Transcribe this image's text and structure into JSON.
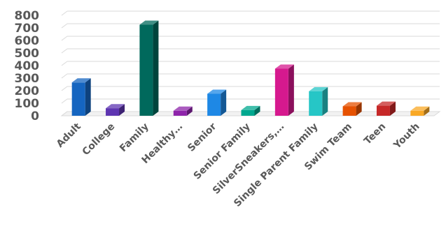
{
  "chart_data": {
    "type": "bar",
    "title": "",
    "xlabel": "",
    "ylabel": "",
    "categories": [
      "Adult",
      "College",
      "Family",
      "Healthy…",
      "Senior",
      "Senior Family",
      "SilverSneakers,…",
      "Single Parent Family",
      "Swim Team",
      "Teen",
      "Youth"
    ],
    "values": [
      265,
      60,
      725,
      40,
      175,
      45,
      375,
      195,
      75,
      80,
      40
    ],
    "colors": [
      "#1565C0",
      "#5E35B1",
      "#00695C",
      "#8E24AA",
      "#1E88E5",
      "#00A88F",
      "#D6198E",
      "#26C6C6",
      "#E65100",
      "#C62828",
      "#F9A825"
    ],
    "ylim": [
      0,
      800
    ],
    "yticks": [
      0,
      100,
      200,
      300,
      400,
      500,
      600,
      700,
      800
    ],
    "grid": true,
    "legend": "none",
    "style": "3d-column"
  }
}
